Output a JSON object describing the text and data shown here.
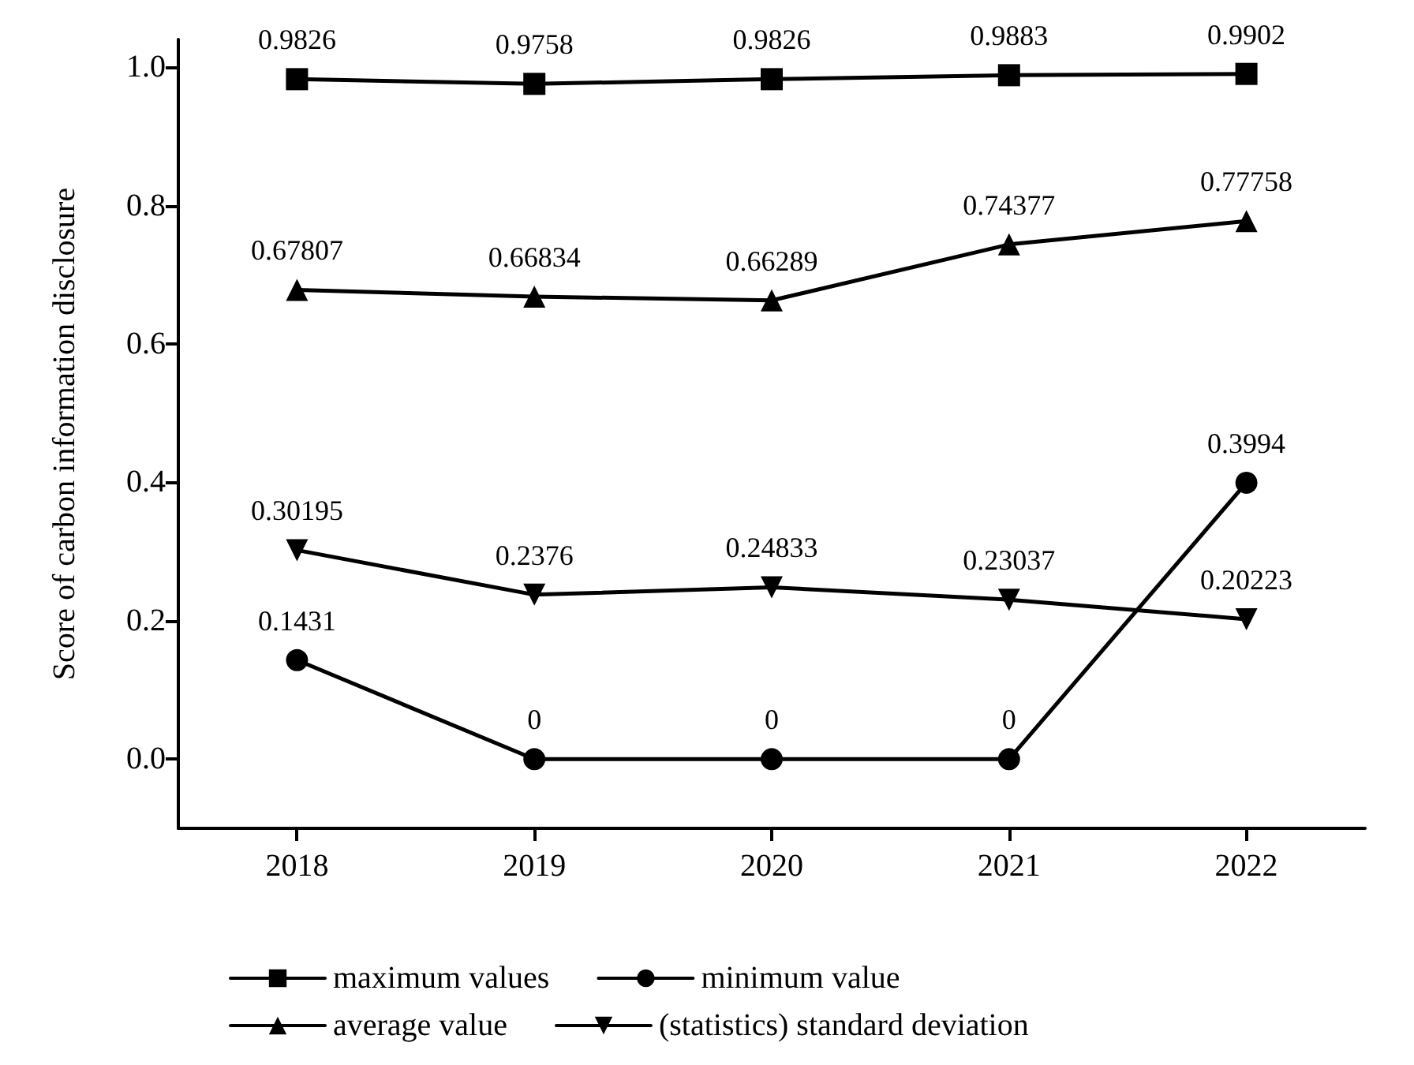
{
  "chart_data": {
    "type": "line",
    "ylabel": "Score of carbon information disclosure",
    "categories": [
      "2018",
      "2019",
      "2020",
      "2021",
      "2022"
    ],
    "series": [
      {
        "name": "maximum values",
        "color": "#000000",
        "marker": "square",
        "values": [
          0.9826,
          0.9758,
          0.9826,
          0.9883,
          0.9902
        ]
      },
      {
        "name": "minimum value",
        "color": "#000000",
        "marker": "circle",
        "values": [
          0.1431,
          0,
          0,
          0,
          0.3994
        ]
      },
      {
        "name": "average value",
        "color": "#000000",
        "marker": "triangle",
        "values": [
          0.67807,
          0.66834,
          0.66289,
          0.74377,
          0.77758
        ]
      },
      {
        "name": "(statistics) standard deviation",
        "color": "#000000",
        "marker": "triangle-down",
        "values": [
          0.30195,
          0.2376,
          0.24833,
          0.23037,
          0.20223
        ]
      }
    ],
    "ylim": [
      -0.1,
      1.04
    ],
    "yticks": [
      {
        "value": 0,
        "label": "0.0"
      },
      {
        "value": 0.2,
        "label": "0.2"
      },
      {
        "value": 0.4,
        "label": "0.4"
      },
      {
        "value": 0.6,
        "label": "0.6"
      },
      {
        "value": 0.8,
        "label": "0.8"
      },
      {
        "value": 1,
        "label": "1.0"
      }
    ],
    "data_labels": true,
    "grid": false,
    "legend": "bottom",
    "line_style": "solid"
  }
}
